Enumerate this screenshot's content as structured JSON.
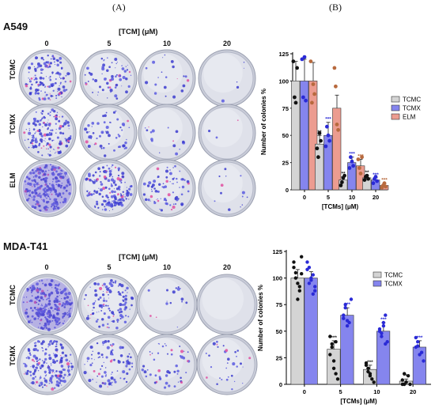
{
  "panel_labels": [
    "(A)",
    "(B)"
  ],
  "top": {
    "cell_line": "A549",
    "conc_title": "[TCM] (μM)",
    "concentrations": [
      "0",
      "5",
      "10",
      "20"
    ],
    "rows": [
      "TCMC",
      "TCMX",
      "ELM"
    ]
  },
  "bottom": {
    "cell_line": "MDA-T41",
    "conc_title": "[TCM] (μM)",
    "concentrations": [
      "0",
      "5",
      "10",
      "20"
    ],
    "rows": [
      "TCMC",
      "TCMX"
    ]
  },
  "plate_colony_density": {
    "top": [
      [
        0.55,
        0.25,
        0.08,
        0.02
      ],
      [
        0.6,
        0.22,
        0.06,
        0.01
      ],
      [
        0.9,
        0.6,
        0.3,
        0.05
      ]
    ],
    "bottom": [
      [
        0.95,
        0.45,
        0.06,
        0.0
      ],
      [
        0.75,
        0.35,
        0.2,
        0.12
      ]
    ]
  },
  "chart_data": [
    {
      "type": "bar",
      "title": "",
      "xlabel": "[TCMs] (μM)",
      "ylabel": "Number of colonies %",
      "categories": [
        "0",
        "5",
        "10",
        "20"
      ],
      "ylim": [
        0,
        125
      ],
      "yticks": [
        "0",
        "25",
        "50",
        "75",
        "100",
        "125"
      ],
      "legend_position": "right",
      "series": [
        {
          "name": "TCMC",
          "color": "#d4d4d4",
          "dot_color": "#111111",
          "values": [
            100,
            42,
            9,
            11
          ],
          "errors": [
            18,
            8,
            3,
            2
          ],
          "stars": [
            "",
            "**",
            "**",
            "**"
          ],
          "points": [
            [
              118,
              85,
              80,
              112
            ],
            [
              38,
              30,
              52,
              45
            ],
            [
              4,
              7,
              11,
              13
            ],
            [
              9,
              12,
              13,
              10
            ]
          ]
        },
        {
          "name": "TCMX",
          "color": "#8585ee",
          "dot_color": "#2a2ad6",
          "values": [
            100,
            50,
            25,
            9
          ],
          "errors": [
            20,
            12,
            5,
            2
          ],
          "stars": [
            "",
            "***",
            "***",
            "***"
          ],
          "points": [
            [
              120,
              85,
              122,
              82
            ],
            [
              40,
              58,
              50,
              45
            ],
            [
              20,
              30,
              26,
              22
            ],
            [
              6,
              10,
              12,
              8
            ]
          ]
        },
        {
          "name": "ELM",
          "color": "#ec9c90",
          "dot_color": "#b86a3e",
          "values": [
            100,
            75,
            22,
            4
          ],
          "errors": [
            17,
            12,
            6,
            2
          ],
          "stars": [
            "",
            "",
            "***",
            "***"
          ],
          "points": [
            [
              118,
              80,
              97,
              88
            ],
            [
              112,
              95,
              60,
              55
            ],
            [
              28,
              20,
              15,
              30
            ],
            [
              2,
              4,
              6,
              3
            ]
          ]
        }
      ]
    },
    {
      "type": "bar",
      "title": "",
      "xlabel": "[TCMs] (μM)",
      "ylabel": "Number of colonies %",
      "categories": [
        "0",
        "5",
        "10",
        "20"
      ],
      "ylim": [
        0,
        125
      ],
      "yticks": [
        "0",
        "25",
        "50",
        "75",
        "100",
        "125"
      ],
      "legend_position": "top-right",
      "series": [
        {
          "name": "TCMC",
          "color": "#d4d4d4",
          "dot_color": "#111111",
          "values": [
            100,
            33,
            14,
            3
          ],
          "errors": [
            8,
            8,
            4,
            2
          ],
          "stars": [
            "",
            "***",
            "***",
            "***"
          ],
          "points": [
            [
              115,
              105,
              95,
              88,
              120,
              110,
              100,
              80,
              92,
              104
            ],
            [
              45,
              38,
              22,
              10,
              5,
              28,
              35,
              15,
              40
            ],
            [
              20,
              15,
              10,
              5,
              2,
              18,
              12,
              8
            ],
            [
              0,
              0,
              2,
              8,
              0,
              4,
              10
            ]
          ]
        },
        {
          "name": "TCMX",
          "color": "#8585ee",
          "dot_color": "#2a2ad6",
          "values": [
            100,
            65,
            50,
            35
          ],
          "errors": [
            6,
            7,
            8,
            6
          ],
          "stars": [
            "",
            "***",
            "***",
            "***"
          ],
          "points": [
            [
              108,
              95,
              100,
              85,
              92,
              115,
              110,
              98,
              103,
              88
            ],
            [
              65,
              72,
              55,
              58,
              80,
              62,
              75,
              60
            ],
            [
              50,
              45,
              58,
              65,
              40,
              52,
              48,
              55,
              38
            ],
            [
              35,
              40,
              28,
              30,
              22,
              44,
              36
            ]
          ]
        }
      ]
    }
  ]
}
